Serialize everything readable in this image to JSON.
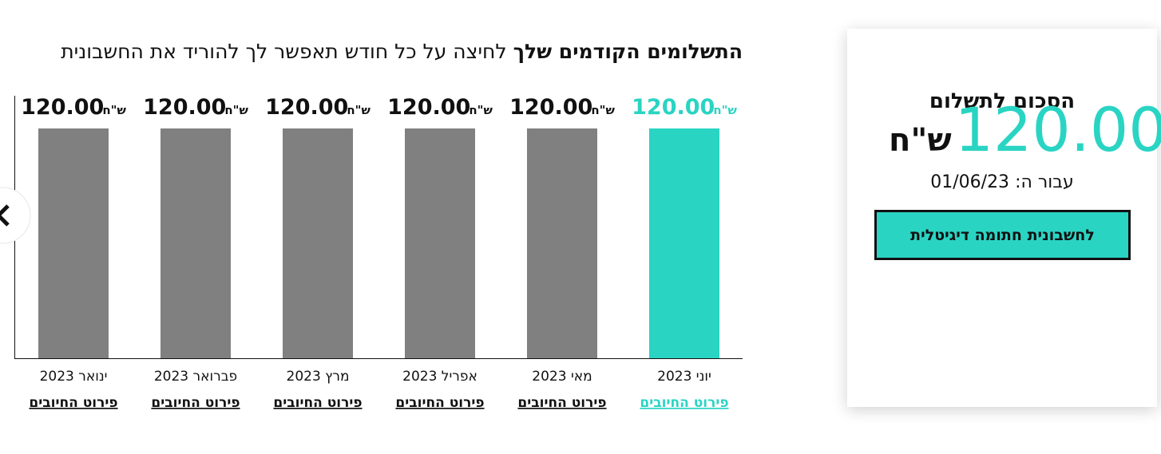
{
  "summary": {
    "title": "הסכום לתשלום",
    "amount": "120.00",
    "currency": "ש\"ח",
    "for_label": "עבור ה:",
    "date": "01/06/23",
    "button": "לחשבונית חתומה דיגיטלית"
  },
  "chart_data": {
    "type": "bar",
    "title_bold": "התשלומים הקודמים שלך",
    "title_rest": "לחיצה על כל חודש תאפשר לך להוריד את החשבונית",
    "categories": [
      "יוני 2023",
      "מאי 2023",
      "אפריל 2023",
      "מרץ 2023",
      "פברואר 2023",
      "ינואר 2023"
    ],
    "values": [
      120,
      120,
      120,
      120,
      120,
      120
    ],
    "value_labels": [
      "120.00",
      "120.00",
      "120.00",
      "120.00",
      "120.00",
      "120.00"
    ],
    "currency": "ש\"ח",
    "link_label": "פירוט החיובים",
    "colors": [
      "#2ad4c3",
      "#808080",
      "#808080",
      "#808080",
      "#808080",
      "#808080"
    ],
    "label_colors": [
      "#2ad4c3",
      "#111111",
      "#111111",
      "#111111",
      "#111111",
      "#111111"
    ]
  }
}
